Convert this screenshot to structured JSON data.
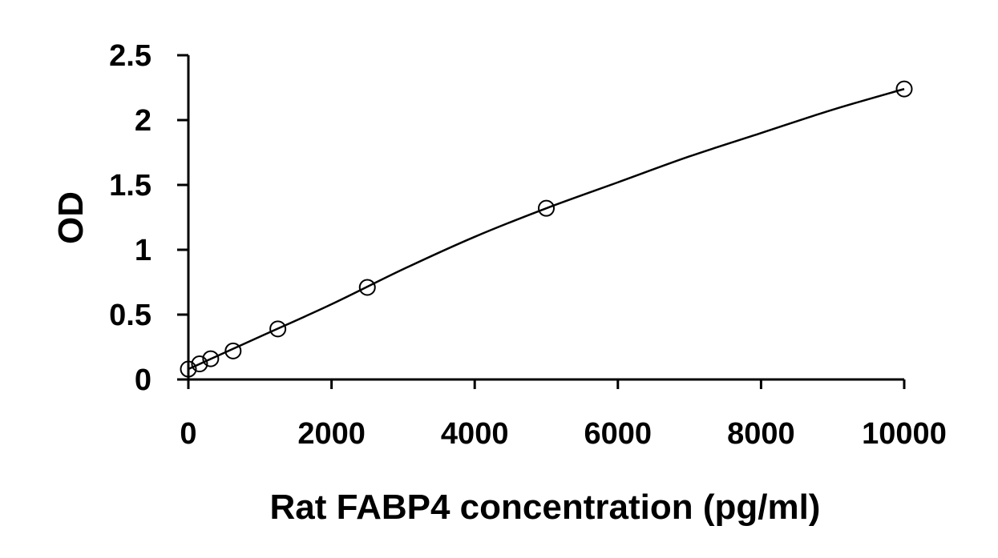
{
  "chart_data": {
    "type": "scatter",
    "title": "",
    "xlabel": "Rat FABP4 concentration (pg/ml)",
    "ylabel": "OD",
    "xlim": [
      0,
      10000
    ],
    "ylim": [
      0,
      2.5
    ],
    "x_ticks": [
      0,
      2000,
      4000,
      6000,
      8000,
      10000
    ],
    "x_tick_labels": [
      "0",
      "2000",
      "4000",
      "6000",
      "8000",
      "10000"
    ],
    "y_ticks": [
      0,
      0.5,
      1,
      1.5,
      2,
      2.5
    ],
    "y_tick_labels": [
      "0",
      "0.5",
      "1",
      "1.5",
      "2",
      "2.5"
    ],
    "grid": false,
    "legend": "none",
    "series": [
      {
        "marker": "open-circle",
        "x": [
          0,
          156,
          312,
          625,
          1250,
          2500,
          5000,
          10000
        ],
        "y": [
          0.08,
          0.12,
          0.16,
          0.22,
          0.39,
          0.71,
          1.32,
          2.24
        ]
      }
    ],
    "fit_curve": {
      "type": "smooth",
      "x": [
        0,
        1000,
        2000,
        3000,
        4000,
        5000,
        6000,
        7000,
        8000,
        9000,
        10000
      ],
      "y": [
        0.08,
        0.33,
        0.58,
        0.85,
        1.1,
        1.32,
        1.52,
        1.72,
        1.9,
        2.08,
        2.24
      ]
    },
    "colors": {
      "axis": "#000000",
      "marker_stroke": "#000000",
      "curve": "#000000"
    }
  }
}
